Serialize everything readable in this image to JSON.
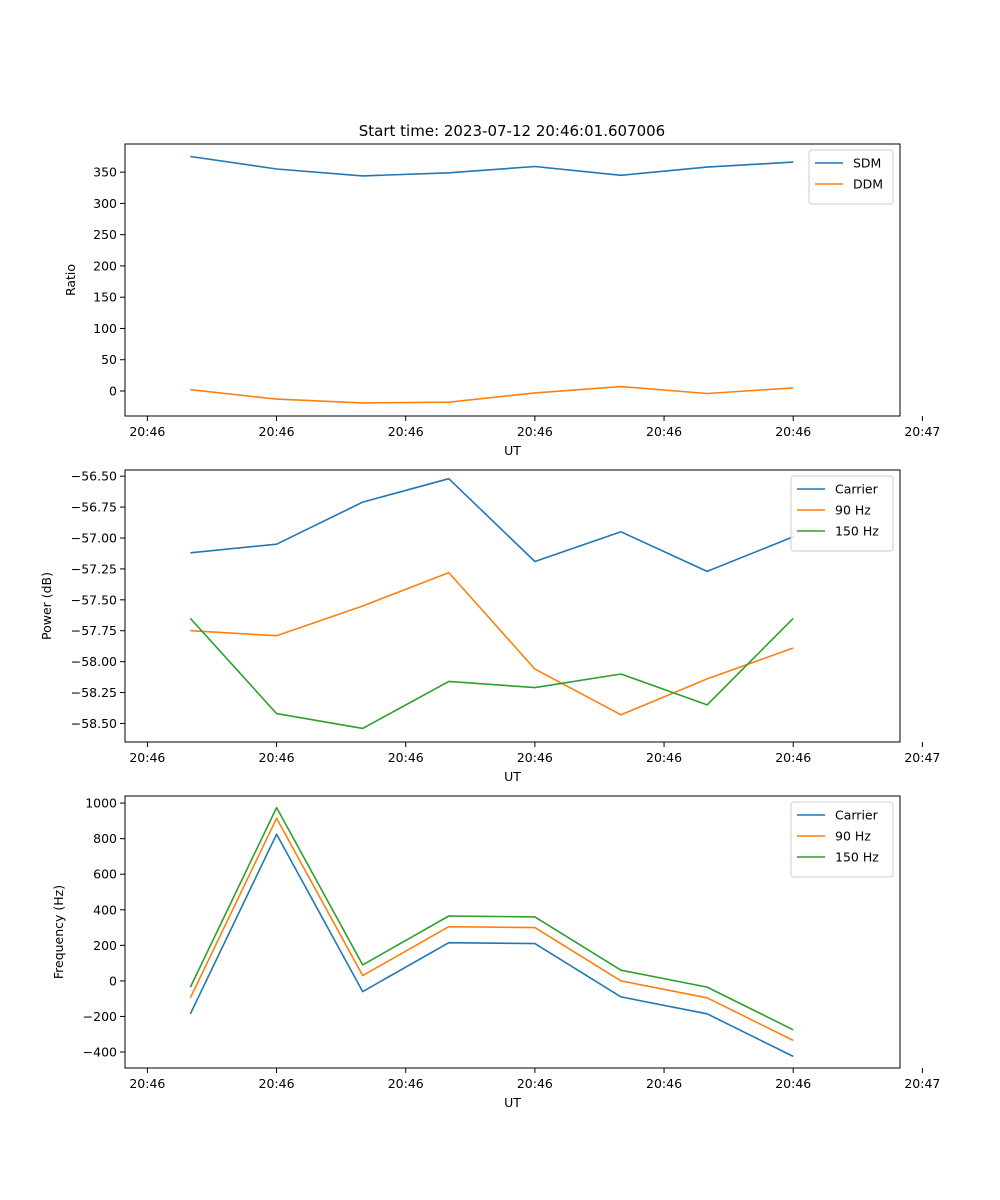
{
  "figure": {
    "title": "Start time: 2023-07-12 20:46:01.607006"
  },
  "colors": {
    "c0": "#1f77b4",
    "c1": "#ff7f0e",
    "c2": "#2ca02c"
  },
  "chart_data": [
    {
      "type": "line",
      "title": "Start time: 2023-07-12 20:46:01.607006",
      "xlabel": "UT",
      "ylabel": "Ratio",
      "x": [
        1,
        2,
        3,
        4,
        5,
        6,
        7,
        8
      ],
      "xlim": [
        0.24,
        9.24
      ],
      "ylim": [
        -40,
        395
      ],
      "yticks": [
        0,
        50,
        100,
        150,
        200,
        250,
        300,
        350
      ],
      "ytick_labels": [
        "0",
        "50",
        "100",
        "150",
        "200",
        "250",
        "300",
        "350"
      ],
      "xticks": [
        0.5,
        2,
        3.5,
        5,
        6.5,
        8,
        9.5
      ],
      "xtick_labels": [
        "20:46",
        "20:46",
        "20:46",
        "20:46",
        "20:46",
        "20:46",
        "20:47"
      ],
      "legend_position": "top-right",
      "series": [
        {
          "name": "SDM",
          "color": "#1f77b4",
          "values": [
            375,
            355,
            344,
            349,
            359,
            345,
            358,
            366
          ]
        },
        {
          "name": "DDM",
          "color": "#ff7f0e",
          "values": [
            2,
            -13,
            -19,
            -18,
            -3,
            7,
            -4,
            5
          ]
        }
      ]
    },
    {
      "type": "line",
      "xlabel": "UT",
      "ylabel": "Power (dB)",
      "x": [
        1,
        2,
        3,
        4,
        5,
        6,
        7,
        8
      ],
      "xlim": [
        0.24,
        9.24
      ],
      "ylim": [
        -58.65,
        -56.45
      ],
      "yticks": [
        -58.5,
        -58.25,
        -58.0,
        -57.75,
        -57.5,
        -57.25,
        -57.0,
        -56.75,
        -56.5
      ],
      "ytick_labels": [
        "−58.50",
        "−58.25",
        "−58.00",
        "−57.75",
        "−57.50",
        "−57.25",
        "−57.00",
        "−56.75",
        "−56.50"
      ],
      "xticks": [
        0.5,
        2,
        3.5,
        5,
        6.5,
        8,
        9.5
      ],
      "xtick_labels": [
        "20:46",
        "20:46",
        "20:46",
        "20:46",
        "20:46",
        "20:46",
        "20:47"
      ],
      "legend_position": "top-right",
      "series": [
        {
          "name": "Carrier",
          "color": "#1f77b4",
          "values": [
            -57.12,
            -57.05,
            -56.71,
            -56.52,
            -57.19,
            -56.95,
            -57.27,
            -56.99
          ]
        },
        {
          "name": "90 Hz",
          "color": "#ff7f0e",
          "values": [
            -57.75,
            -57.79,
            -57.55,
            -57.28,
            -58.06,
            -58.43,
            -58.14,
            -57.89
          ]
        },
        {
          "name": "150 Hz",
          "color": "#2ca02c",
          "values": [
            -57.65,
            -58.42,
            -58.54,
            -58.16,
            -58.21,
            -58.1,
            -58.35,
            -57.65
          ]
        }
      ]
    },
    {
      "type": "line",
      "xlabel": "UT",
      "ylabel": "Frequency (Hz)",
      "x": [
        1,
        2,
        3,
        4,
        5,
        6,
        7,
        8
      ],
      "xlim": [
        0.24,
        9.24
      ],
      "ylim": [
        -490,
        1040
      ],
      "yticks": [
        -400,
        -200,
        0,
        200,
        400,
        600,
        800,
        1000
      ],
      "ytick_labels": [
        "−400",
        "−200",
        "0",
        "200",
        "400",
        "600",
        "800",
        "1000"
      ],
      "xticks": [
        0.5,
        2,
        3.5,
        5,
        6.5,
        8,
        9.5
      ],
      "xtick_labels": [
        "20:46",
        "20:46",
        "20:46",
        "20:46",
        "20:46",
        "20:46",
        "20:47"
      ],
      "legend_position": "top-right",
      "series": [
        {
          "name": "Carrier",
          "color": "#1f77b4",
          "values": [
            -185,
            825,
            -60,
            215,
            210,
            -90,
            -185,
            -425
          ]
        },
        {
          "name": "90 Hz",
          "color": "#ff7f0e",
          "values": [
            -95,
            915,
            30,
            305,
            300,
            0,
            -95,
            -335
          ]
        },
        {
          "name": "150 Hz",
          "color": "#2ca02c",
          "values": [
            -35,
            975,
            90,
            365,
            360,
            60,
            -35,
            -275
          ]
        }
      ]
    }
  ]
}
